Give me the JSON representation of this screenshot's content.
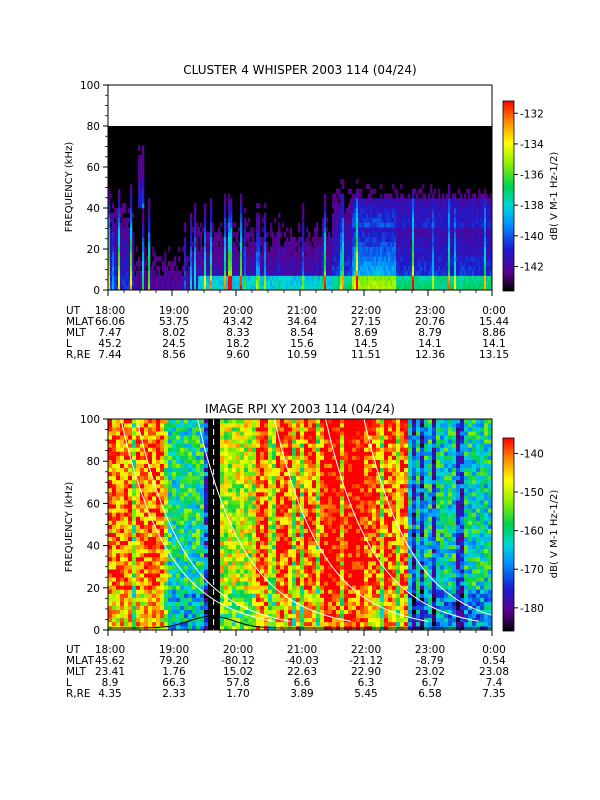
{
  "chart_data": [
    {
      "type": "heatmap",
      "title": "CLUSTER 4 WHISPER 2003 114 (04/24)",
      "ylabel": "FREQUENCY (kHz)",
      "ylim": [
        0,
        100
      ],
      "yticks": [
        0,
        20,
        40,
        60,
        80,
        100
      ],
      "data_top_khz": 80,
      "xlim_hours": [
        18,
        24
      ],
      "x_tick_labels": [
        "18:00",
        "19:00",
        "20:00",
        "21:00",
        "22:00",
        "23:00",
        "0:00"
      ],
      "colorbar": {
        "label": "dB( V M-1 Hz-1/2)",
        "range": [
          -143.6,
          -131.2
        ],
        "ticks": [
          -132,
          -134,
          -136,
          -138,
          -140,
          -142
        ]
      },
      "ephemeris": {
        "row_labels": [
          "UT",
          "MLAT",
          "MLT",
          "L",
          "R,RE"
        ],
        "rows": [
          [
            "18:00",
            "19:00",
            "20:00",
            "21:00",
            "22:00",
            "23:00",
            "0:00"
          ],
          [
            "66.06",
            "53.75",
            "43.42",
            "34.64",
            "27.15",
            "20.76",
            "15.44"
          ],
          [
            "7.47",
            "8.02",
            "8.33",
            "8.54",
            "8.69",
            "8.79",
            "8.86"
          ],
          [
            "45.2",
            "24.5",
            "18.2",
            "15.6",
            "14.5",
            "14.1",
            "14.1"
          ],
          [
            "7.44",
            "8.56",
            "9.60",
            "10.59",
            "11.51",
            "12.36",
            "13.15"
          ]
        ]
      }
    },
    {
      "type": "heatmap",
      "title": "IMAGE RPI XY 2003 114 (04/24)",
      "ylabel": "FREQUENCY (kHz)",
      "ylim": [
        0,
        100
      ],
      "yticks": [
        0,
        20,
        40,
        60,
        80,
        100
      ],
      "xlim_hours": [
        18,
        24
      ],
      "x_tick_labels": [
        "18:00",
        "19:00",
        "20:00",
        "21:00",
        "22:00",
        "23:00",
        "0:00"
      ],
      "colorbar": {
        "label": "dB( V M-1 Hz-1/2)",
        "range": [
          -186,
          -136
        ],
        "ticks": [
          -140,
          -150,
          -160,
          -170,
          -180
        ]
      },
      "ephemeris": {
        "row_labels": [
          "UT",
          "MLAT",
          "MLT",
          "L",
          "R,RE"
        ],
        "rows": [
          [
            "18:00",
            "19:00",
            "20:00",
            "21:00",
            "22:00",
            "23:00",
            "0:00"
          ],
          [
            "45.62",
            "79.20",
            "-80.12",
            "-40.03",
            "-21.12",
            "-8.79",
            "0.54"
          ],
          [
            "23.41",
            "1.76",
            "15.02",
            "22.63",
            "22.90",
            "23.02",
            "23.08"
          ],
          [
            "8.9",
            "66.3",
            "57.8",
            "6.6",
            "6.3",
            "6.7",
            "7.4"
          ],
          [
            "4.35",
            "2.33",
            "1.70",
            "3.89",
            "5.45",
            "6.58",
            "7.35"
          ]
        ]
      }
    }
  ]
}
